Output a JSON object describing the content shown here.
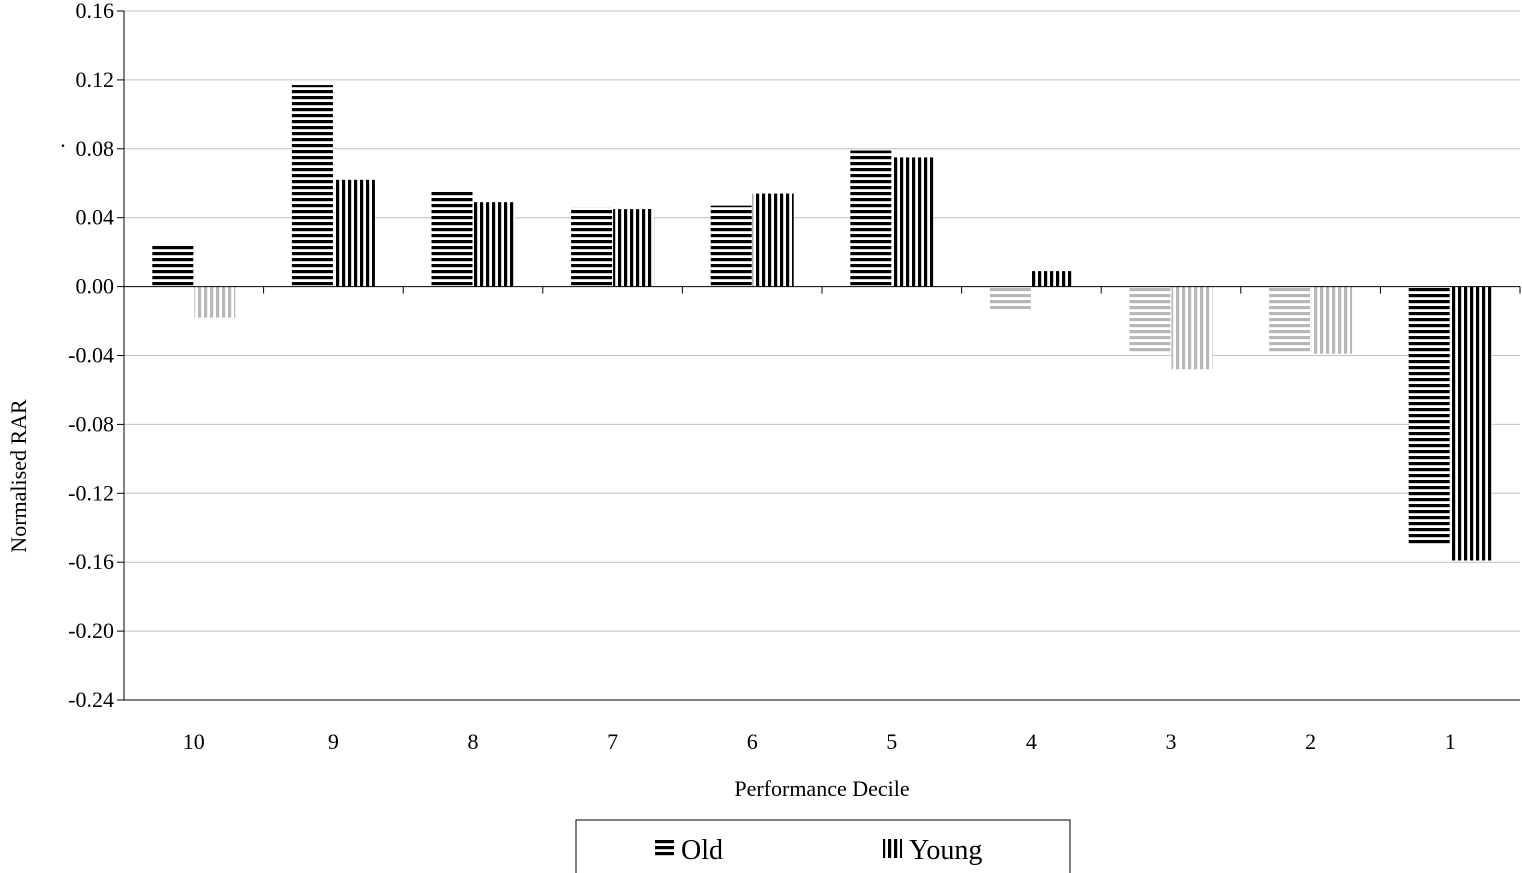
{
  "chart_data": {
    "type": "bar",
    "title": "",
    "xlabel": "Performance Decile",
    "ylabel": "Normalised RAR",
    "ylim": [
      -0.24,
      0.16
    ],
    "yticks": [
      "0.16",
      "0.12",
      "0.08",
      "0.04",
      "0.00",
      "-0.04",
      "-0.08",
      "-0.12",
      "-0.16",
      "-0.20",
      "-0.24"
    ],
    "categories": [
      "10",
      "9",
      "8",
      "7",
      "6",
      "5",
      "4",
      "3",
      "2",
      "1"
    ],
    "series": [
      {
        "name": "Old",
        "pattern": "horizontal",
        "values": [
          0.025,
          0.117,
          0.056,
          0.046,
          0.047,
          0.079,
          -0.013,
          -0.039,
          -0.038,
          -0.15
        ],
        "muted": [
          false,
          false,
          false,
          false,
          false,
          false,
          true,
          true,
          true,
          false
        ]
      },
      {
        "name": "Young",
        "pattern": "vertical",
        "values": [
          -0.018,
          0.062,
          0.049,
          0.045,
          0.054,
          0.075,
          0.009,
          -0.048,
          -0.039,
          -0.159
        ],
        "muted": [
          true,
          false,
          false,
          false,
          false,
          false,
          false,
          true,
          true,
          false
        ]
      }
    ],
    "stray_mark": ".",
    "grid": true,
    "legend_position": "bottom-center",
    "colors": {
      "strong": "#000000",
      "muted": "#b8b8b8",
      "grid": "#c0c0c0"
    }
  }
}
